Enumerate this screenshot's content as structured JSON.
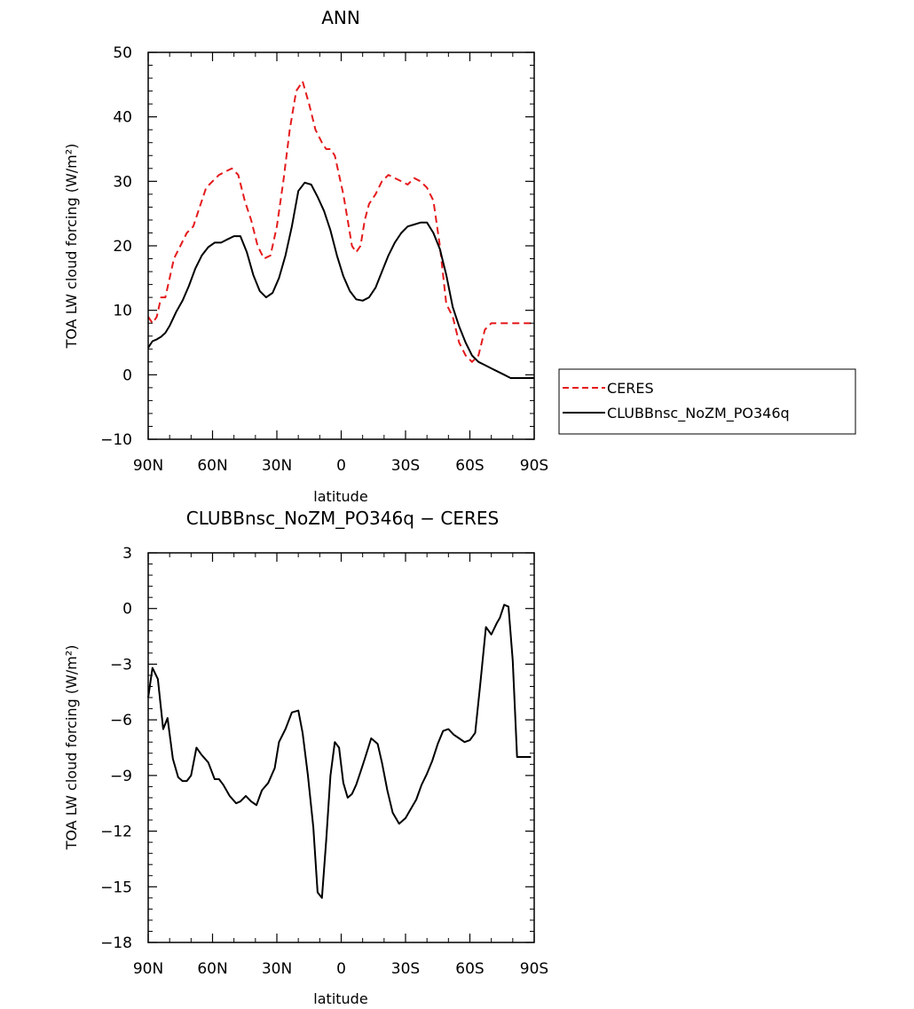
{
  "chart_data": [
    {
      "type": "line",
      "title": "ANN",
      "xlabel": "latitude",
      "ylabel": "TOA LW cloud forcing (W/m²)",
      "xlim": [
        90,
        -90
      ],
      "ylim": [
        -10,
        50
      ],
      "xticks": [
        {
          "value": 90,
          "label": "90N"
        },
        {
          "value": 60,
          "label": "60N"
        },
        {
          "value": 30,
          "label": "30N"
        },
        {
          "value": 0,
          "label": "0"
        },
        {
          "value": -30,
          "label": "30S"
        },
        {
          "value": -60,
          "label": "60S"
        },
        {
          "value": -90,
          "label": "90S"
        }
      ],
      "yticks": [
        {
          "value": 50,
          "label": "50"
        },
        {
          "value": 40,
          "label": "40"
        },
        {
          "value": 30,
          "label": "30"
        },
        {
          "value": 20,
          "label": "20"
        },
        {
          "value": 10,
          "label": "10"
        },
        {
          "value": 0,
          "label": "0"
        },
        {
          "value": -10,
          "label": "−10"
        }
      ],
      "legend": "right",
      "series": [
        {
          "name": "CERES",
          "color": "#e41a1c",
          "dash": true,
          "x": [
            90,
            88,
            86,
            84,
            82,
            80,
            78,
            75,
            72,
            69,
            66,
            63,
            60,
            57,
            54,
            51,
            48,
            45,
            42,
            39,
            36,
            33,
            30,
            27,
            24,
            21,
            18,
            15,
            12,
            9,
            7,
            5,
            3,
            1,
            -1,
            -3,
            -5,
            -7,
            -9,
            -11,
            -13,
            -16,
            -19,
            -22,
            -25,
            -28,
            -31,
            -34,
            -37,
            -40,
            -43,
            -46,
            -49,
            -52,
            -55,
            -58,
            -61,
            -64,
            -67,
            -70,
            -73,
            -76,
            -79,
            -82,
            -85,
            -87,
            -89,
            -90
          ],
          "y": [
            9,
            8,
            9,
            12,
            12,
            15,
            18,
            20,
            22,
            23,
            26,
            29,
            30,
            31,
            31.5,
            32,
            31,
            27,
            24,
            20,
            18,
            18.5,
            23,
            30,
            38,
            44,
            45.5,
            42,
            38,
            36,
            35,
            35,
            34,
            31,
            28,
            24,
            20,
            19,
            20,
            24,
            26.5,
            28,
            30,
            31,
            30.5,
            30,
            29.5,
            30.5,
            30,
            29,
            27,
            20,
            11,
            9,
            5,
            3,
            2,
            3,
            7,
            8,
            8,
            8,
            8,
            8,
            8,
            8,
            8,
            8
          ]
        },
        {
          "name": "CLUBBnsc_NoZM_PO346q",
          "color": "#000000",
          "dash": false,
          "x": [
            90,
            88,
            86,
            84,
            82,
            80,
            77,
            74,
            71,
            68,
            65,
            62,
            59,
            56,
            53,
            50,
            47,
            44,
            41,
            38,
            35,
            32,
            29,
            26,
            23,
            20,
            17,
            14,
            11,
            8,
            5,
            2,
            -1,
            -4,
            -7,
            -10,
            -13,
            -16,
            -19,
            -22,
            -25,
            -28,
            -31,
            -34,
            -37,
            -40,
            -43,
            -46,
            -49,
            -52,
            -55,
            -58,
            -61,
            -64,
            -67,
            -70,
            -73,
            -76,
            -79,
            -82,
            -85,
            -87,
            -90
          ],
          "y": [
            4.2,
            5.2,
            5.5,
            5.9,
            6.5,
            7.6,
            9.7,
            11.5,
            13.8,
            16.5,
            18.5,
            19.8,
            20.5,
            20.5,
            21,
            21.5,
            21.5,
            19,
            15.5,
            13,
            12,
            12.7,
            15,
            18.5,
            23,
            28.5,
            29.8,
            29.5,
            27.6,
            25.4,
            22.4,
            18.5,
            15.3,
            13,
            11.7,
            11.5,
            12,
            13.5,
            16,
            18.5,
            20.5,
            22,
            23,
            23.3,
            23.6,
            23.6,
            22,
            19.5,
            15.5,
            10.5,
            7.5,
            5,
            3,
            2,
            1.5,
            1,
            0.5,
            0,
            -0.5,
            -0.5,
            -0.5,
            -0.5,
            -0.5
          ]
        }
      ]
    },
    {
      "type": "line",
      "title": "CLUBBnsc_NoZM_PO346q − CERES",
      "xlabel": "latitude",
      "ylabel": "TOA LW cloud forcing (W/m²)",
      "xlim": [
        90,
        -90
      ],
      "ylim": [
        -18,
        3
      ],
      "xticks": [
        {
          "value": 90,
          "label": "90N"
        },
        {
          "value": 60,
          "label": "60N"
        },
        {
          "value": 30,
          "label": "30N"
        },
        {
          "value": 0,
          "label": "0"
        },
        {
          "value": -30,
          "label": "30S"
        },
        {
          "value": -60,
          "label": "60S"
        },
        {
          "value": -90,
          "label": "90S"
        }
      ],
      "yticks": [
        {
          "value": 3,
          "label": "3"
        },
        {
          "value": 0,
          "label": "0"
        },
        {
          "value": -3,
          "label": "−3"
        },
        {
          "value": -6,
          "label": "−6"
        },
        {
          "value": -9,
          "label": "−9"
        },
        {
          "value": -12,
          "label": "−12"
        },
        {
          "value": -15,
          "label": "−15"
        },
        {
          "value": -18,
          "label": "−18"
        }
      ],
      "series": [
        {
          "color": "#000000",
          "dash": false,
          "x": [
            90,
            88,
            85.5,
            83,
            81,
            78.5,
            76,
            74,
            72,
            70,
            67.5,
            65,
            62,
            59,
            57,
            55,
            52,
            49,
            47,
            44.5,
            42,
            39.5,
            37,
            34,
            31,
            29,
            26,
            23,
            20,
            18,
            15.5,
            13,
            11,
            9,
            7,
            5,
            3,
            1,
            -1,
            -3,
            -5,
            -7,
            -9,
            -11,
            -14,
            -17,
            -19,
            -21.5,
            -24,
            -27,
            -30,
            -32.5,
            -35,
            -37.5,
            -40,
            -42.5,
            -45,
            -47.5,
            -50,
            -52.5,
            -55,
            -57.5,
            -60,
            -62.5,
            -65,
            -67.5,
            -70,
            -72.5,
            -74,
            -76,
            -78,
            -80,
            -82,
            -84,
            -87,
            -88.5
          ],
          "y": [
            -4.8,
            -3.2,
            -3.8,
            -6.5,
            -5.9,
            -8.1,
            -9.1,
            -9.3,
            -9.3,
            -9.0,
            -7.5,
            -7.9,
            -8.3,
            -9.2,
            -9.2,
            -9.5,
            -10.1,
            -10.5,
            -10.4,
            -10.1,
            -10.4,
            -10.6,
            -9.8,
            -9.4,
            -8.6,
            -7.2,
            -6.5,
            -5.6,
            -5.5,
            -6.7,
            -9.0,
            -11.8,
            -15.3,
            -15.6,
            -12.5,
            -9.0,
            -7.2,
            -7.5,
            -9.4,
            -10.2,
            -10.0,
            -9.5,
            -8.8,
            -8.1,
            -7.0,
            -7.3,
            -8.3,
            -9.8,
            -11.0,
            -11.6,
            -11.3,
            -10.8,
            -10.3,
            -9.5,
            -8.9,
            -8.2,
            -7.3,
            -6.6,
            -6.5,
            -6.8,
            -7.0,
            -7.2,
            -7.1,
            -6.7,
            -3.9,
            -1.0,
            -1.4,
            -0.8,
            -0.5,
            0.2,
            0.1,
            -2.8,
            -8.0,
            -8.0,
            -8.0,
            -8.0
          ]
        }
      ]
    }
  ]
}
